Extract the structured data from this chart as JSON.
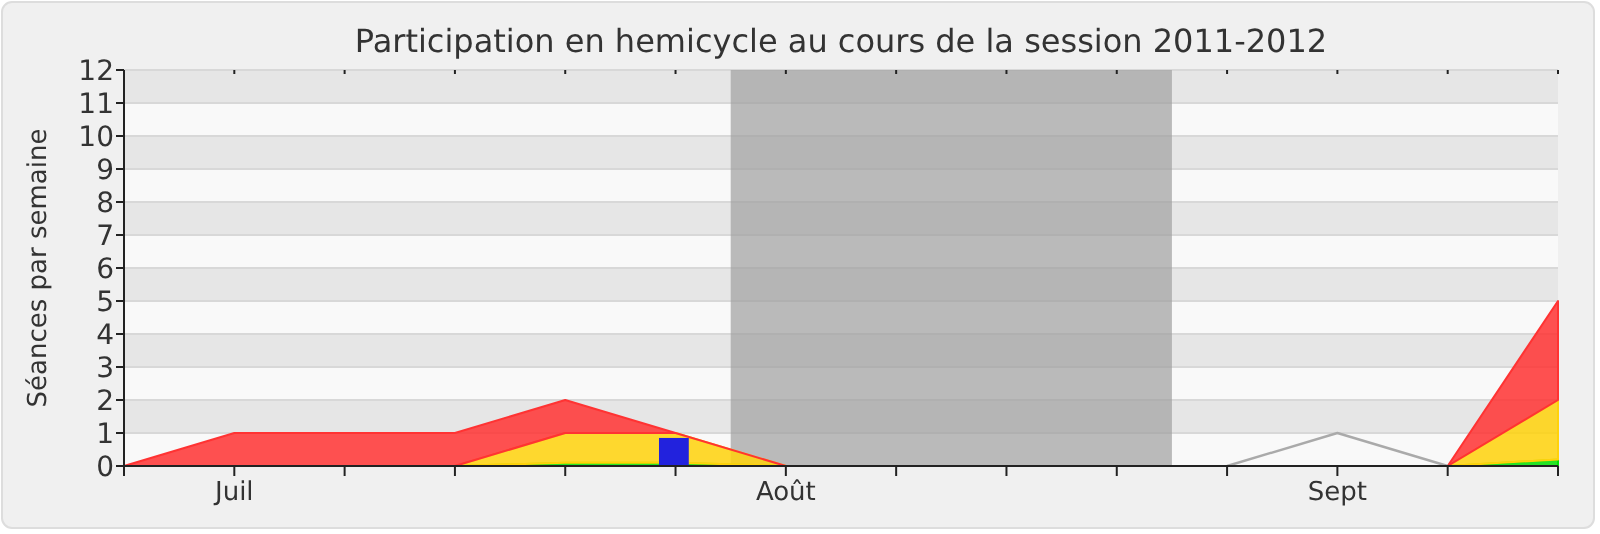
{
  "chart_data": {
    "type": "area",
    "title": "Participation en hemicycle au cours de la session 2011-2012",
    "ylabel": "Séances par semaine",
    "categories": [
      null,
      "Juil",
      null,
      null,
      null,
      null,
      "Août",
      null,
      null,
      null,
      null,
      "Sept",
      null,
      null
    ],
    "ylim": [
      0,
      12
    ],
    "yticks": [
      0,
      1,
      2,
      3,
      4,
      5,
      6,
      7,
      8,
      9,
      10,
      11,
      12
    ],
    "grid": "y",
    "stacked": true,
    "series": [
      {
        "color": "#00e000",
        "values": [
          0,
          0,
          0,
          0,
          0.1,
          0.1,
          0,
          0,
          0,
          0,
          0,
          0,
          0,
          0.2
        ]
      },
      {
        "color": "#ffd20a",
        "values": [
          0,
          0,
          0,
          0,
          0.9,
          0.9,
          0,
          0,
          0,
          0,
          0,
          0,
          0,
          1.8
        ]
      },
      {
        "color": "#ff3333",
        "values": [
          0,
          1,
          1,
          1,
          1,
          0,
          0,
          0,
          0,
          0,
          0,
          0,
          0,
          3
        ]
      },
      {
        "type": "bar",
        "color": "#2222dd",
        "values": [
          null,
          null,
          null,
          null,
          null,
          0.85,
          null,
          null,
          null,
          null,
          null,
          null,
          null,
          null
        ]
      },
      {
        "type": "line",
        "color": "#aaaaaa",
        "values": [
          null,
          null,
          null,
          null,
          null,
          null,
          null,
          null,
          null,
          null,
          0,
          1,
          0,
          null
        ]
      }
    ]
  }
}
